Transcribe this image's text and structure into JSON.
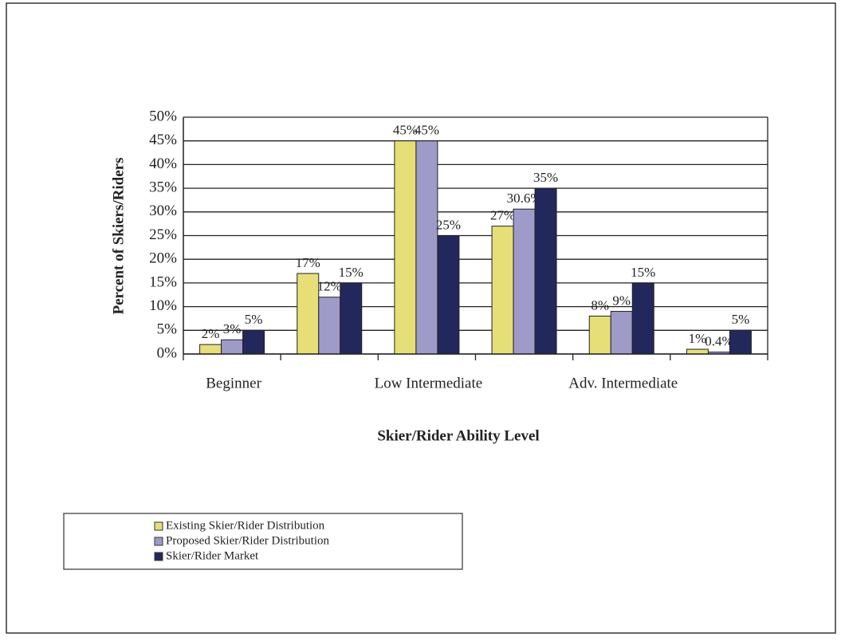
{
  "chart_data": {
    "type": "bar",
    "categories": [
      "Beginner",
      null,
      "Low Intermediate",
      null,
      "Adv. Intermediate",
      null
    ],
    "series": [
      {
        "name": "Existing Skier/Rider Distribution",
        "color": "#e6df78",
        "values": [
          2,
          17,
          45,
          27,
          8,
          1
        ],
        "value_labels": [
          "2%",
          "17%",
          "45%",
          "27%",
          "8%",
          "1%"
        ]
      },
      {
        "name": "Proposed Skier/Rider Distribution",
        "color": "#9e9bc9",
        "values": [
          3,
          12,
          45,
          30.6,
          9,
          0.4
        ],
        "value_labels": [
          "3%",
          "12%",
          "45%",
          "30.6%",
          "9%",
          "0.4%"
        ]
      },
      {
        "name": "Skier/Rider Market",
        "color": "#23285c",
        "values": [
          5,
          15,
          25,
          35,
          15,
          5
        ],
        "value_labels": [
          "5%",
          "15%",
          "25%",
          "35%",
          "15%",
          "5%"
        ]
      }
    ],
    "ylabel": "Percent of Skiers/Riders",
    "xlabel": "Skier/Rider Ability Level",
    "ylim": [
      0,
      50
    ],
    "yticks": [
      {
        "value": 0,
        "label": "0%"
      },
      {
        "value": 5,
        "label": "5%"
      },
      {
        "value": 10,
        "label": "10%"
      },
      {
        "value": 15,
        "label": "15%"
      },
      {
        "value": 20,
        "label": "20%"
      },
      {
        "value": 25,
        "label": "25%"
      },
      {
        "value": 30,
        "label": "30%"
      },
      {
        "value": 35,
        "label": "35%"
      },
      {
        "value": 40,
        "label": "40%"
      },
      {
        "value": 45,
        "label": "45%"
      },
      {
        "value": 50,
        "label": "50%"
      }
    ],
    "grid": true,
    "legend": "bottom-left"
  }
}
